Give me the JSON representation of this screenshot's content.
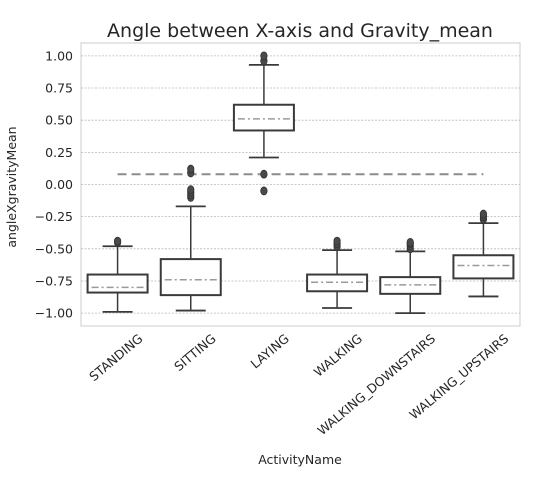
{
  "chart_data": {
    "type": "box",
    "title": "Angle between X-axis and Gravity_mean",
    "xlabel": "ActivityName",
    "ylabel": "angleXgravityMean",
    "ylim": [
      -1.1,
      1.1
    ],
    "yticks": [
      "1.00",
      "0.75",
      "0.50",
      "0.25",
      "0.00",
      "−0.25",
      "−0.50",
      "−0.75",
      "−1.00"
    ],
    "ytick_values": [
      1.0,
      0.75,
      0.5,
      0.25,
      0.0,
      -0.25,
      -0.5,
      -0.75,
      -1.0
    ],
    "grid": true,
    "categories": [
      "STANDING",
      "SITTING",
      "LAYING",
      "WALKING",
      "WALKING_DOWNSTAIRS",
      "WALKING_UPSTAIRS"
    ],
    "boxes": [
      {
        "whisker_low": -0.99,
        "q1": -0.84,
        "median": -0.8,
        "q3": -0.7,
        "whisker_high": -0.48,
        "outliers": [
          -0.45,
          -0.44
        ]
      },
      {
        "whisker_low": -0.98,
        "q1": -0.86,
        "median": -0.74,
        "q3": -0.58,
        "whisker_high": -0.17,
        "outliers": [
          -0.1,
          -0.08,
          -0.06,
          -0.04,
          0.09,
          0.12
        ]
      },
      {
        "whisker_low": 0.21,
        "q1": 0.42,
        "median": 0.51,
        "q3": 0.62,
        "whisker_high": 0.93,
        "outliers": [
          0.96,
          1.0,
          0.08,
          -0.05
        ]
      },
      {
        "whisker_low": -0.96,
        "q1": -0.83,
        "median": -0.76,
        "q3": -0.7,
        "whisker_high": -0.51,
        "outliers": [
          -0.48,
          -0.46,
          -0.44
        ]
      },
      {
        "whisker_low": -1.0,
        "q1": -0.85,
        "median": -0.78,
        "q3": -0.72,
        "whisker_high": -0.52,
        "outliers": [
          -0.5,
          -0.48,
          -0.46,
          -0.45
        ]
      },
      {
        "whisker_low": -0.87,
        "q1": -0.73,
        "median": -0.63,
        "q3": -0.55,
        "whisker_high": -0.3,
        "outliers": [
          -0.27,
          -0.25,
          -0.23
        ]
      }
    ],
    "reference_line": {
      "value": 0.08,
      "from_category": 0,
      "to_category": 5
    }
  }
}
